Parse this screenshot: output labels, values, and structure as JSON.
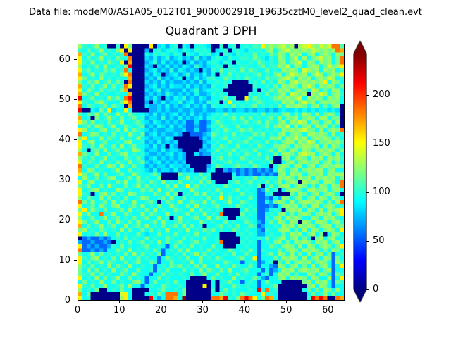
{
  "figure": {
    "data_file_label": "Data file: modeM0/AS1A05_012T01_9000002918_19635cztM0_level2_quad_clean.evt",
    "title": "Quadrant 3 DPH"
  },
  "chart_data": {
    "type": "heatmap",
    "title": "Quadrant 3 DPH",
    "xlabel": "",
    "ylabel": "",
    "x_range": [
      0,
      64
    ],
    "y_range": [
      0,
      64
    ],
    "x_ticks": [
      0,
      10,
      20,
      30,
      40,
      50,
      60
    ],
    "y_ticks": [
      0,
      10,
      20,
      30,
      40,
      50,
      60
    ],
    "grid": false,
    "colormap": "jet",
    "vmin": 0,
    "vmax": 243,
    "colorbar_ticks": [
      0,
      50,
      100,
      150,
      200
    ],
    "colorbar_extend": "both",
    "matrix_note": "64x64 counts estimated from pixel colors; rows listed top (y=63) to bottom (y=0); each row is 8 segments of 8 hex palette indices; palette_values maps hex digit to counts",
    "palette_values": {
      "0": 2,
      "1": 30,
      "2": 55,
      "3": 72,
      "4": 85,
      "5": 95,
      "6": 103,
      "7": 110,
      "8": 118,
      "9": 128,
      "a": 140,
      "b": 155,
      "c": 172,
      "d": 185,
      "e": 215,
      "f": 238
    },
    "matrix_rows_top_to_bottom": [
      [
        "96569560",
        "060b8000",
        "0b045356",
        "05405654",
        "00605605",
        "6576b898",
        "9a8909ab",
        "98a9add7"
      ],
      [
        "65856956",
        "58b0b000",
        "30564565",
        "46546565",
        "04560565",
        "46565895",
        "89a89898",
        "a98989dc"
      ],
      [
        "c6595685",
        "656d0000",
        "54656546",
        "50654656",
        "45065465",
        "65856586",
        "98598958",
        "95898598"
      ],
      [
        "b5856956",
        "5865d000",
        "43534634",
        "53436343",
        "56546556",
        "65865465",
        "9858a595",
        "89a8958d"
      ],
      [
        "b6595658",
        "65b0c000",
        "34635343",
        "40353435",
        "65465065",
        "56586565",
        "89589a59",
        "8598958d"
      ],
      [
        "95658595",
        "5658e000",
        "43043534",
        "35436434",
        "56506556",
        "65568566",
        "98a59858",
        "9958a89b"
      ],
      [
        "b6856586",
        "856d5000",
        "34534363",
        "54343043",
        "65856658",
        "58655856",
        "598985a9",
        "89598957"
      ],
      [
        "c5695865",
        "658bd000",
        "43540345",
        "34634353",
        "50658565",
        "65685658",
        "958a9895",
        "8a95898b"
      ],
      [
        "b8565956",
        "5655c000",
        "34363434",
        "50435346",
        "65586565",
        "86565866",
        "89a85989",
        "5898a956"
      ],
      [
        "95869568",
        "5860d000",
        "43435343",
        "34343635",
        "56565000",
        "05658565",
        "9859a898",
        "989b5985"
      ],
      [
        "c6585695",
        "856db000",
        "34534354",
        "43534343",
        "65560000",
        "00655658",
        "5989859a",
        "85989858"
      ],
      [
        "b5965856",
        "658c0000",
        "43463433",
        "35346345",
        "56500000",
        "00506586",
        "98958985",
        "a9585995"
      ],
      [
        "c8659565",
        "5655c000",
        "34343643",
        "43435334",
        "65650000",
        "06565856",
        "895a9890",
        "98a95896"
      ],
      [
        "e5685659",
        "685de000",
        "43530435",
        "46343543",
        "55685600",
        "b5865568",
        "98989a59",
        "89859895"
      ],
      [
        "b6558965",
        "558bd000",
        "30435344",
        "63453436",
        "5605b565",
        "65686556",
        "598958a8",
        "95898985"
      ],
      [
        "d5865685",
        "8650c000",
        "43343534",
        "34534353",
        "65565856",
        "56856565",
        "85989985",
        "89585890"
      ],
      [
        "e005485b",
        "455b5000",
        "03343433",
        "43343343",
        "34434344",
        "34344343",
        "45445454",
        "54554540"
      ],
      [
        "75869586",
        "59658655",
        "43534345",
        "34353434",
        "56585655",
        "65658566",
        "58958598",
        "59589850"
      ],
      [
        "c5608569",
        "65856856",
        "34436343",
        "53434535",
        "65656858",
        "58565685",
        "95889589",
        "85995880"
      ],
      [
        "b8595658",
        "56955685",
        "43543434",
        "34224223",
        "58655656",
        "85685865",
        "89598a95",
        "98589590"
      ],
      [
        "56859856",
        "95586568",
        "34354353",
        "43223224",
        "65865585",
        "56556858",
        "98a59589",
        "59895850"
      ],
      [
        "b9565895",
        "68595865",
        "43433443",
        "34224223",
        "56586568",
        "68565656",
        "598989a8",
        "8595898d"
      ],
      [
        "d5698565",
        "85659658",
        "34534334",
        "30022234",
        "86565856",
        "55868565",
        "89589859",
        "98985956"
      ],
      [
        "8b565958",
        "65856595",
        "43443540",
        "00000243",
        "65685665",
        "68556588",
        "9598a895",
        "89898585"
      ],
      [
        "b5895685",
        "56589556",
        "34353434",
        "00000034",
        "56558566",
        "85665856",
        "5899598a",
        "95889897"
      ],
      [
        "b6585965",
        "85956855",
        "43534043",
        "00000043",
        "65865585",
        "56586558",
        "89859899",
        "89595985"
      ],
      [
        "95068595",
        "68565985",
        "34435344",
        "30000334",
        "58566856",
        "65855685",
        "98598598",
        "58989858"
      ],
      [
        "c8659558",
        "56895656",
        "43343453",
        "43004233",
        "65658565",
        "86585658",
        "599859a9",
        "95898595"
      ],
      [
        "96585695",
        "65586585",
        "34534343",
        "43000000",
        "56856558",
        "65665850",
        "08958985",
        "98959896"
      ],
      [
        "b5865956",
        "58659568",
        "43453434",
        "34000000",
        "65568565",
        "58556580",
        "05895898",
        "89589585"
      ],
      [
        "d6558569",
        "85965855",
        "34344354",
        "43400003",
        "58655686",
        "65865505",
        "89859958",
        "95898898"
      ],
      [
        "c5985655",
        "69558565",
        "43534435",
        "34340004",
        "50032323",
        "23232325",
        "98589589",
        "89958955"
      ],
      [
        "b8569585",
        "56855965",
        "56850000",
        "85655856",
        "00000523",
        "23223232",
        "89598958",
        "98959899"
      ],
      [
        "59658568",
        "95568595",
        "65580000",
        "56956585",
        "00000655",
        "65856565",
        "98985989",
        "59898958"
      ],
      [
        "b5895656",
        "58695586",
        "58659565",
        "85565958",
        "50005685",
        "68565856",
        "95898098",
        "9859985d"
      ],
      [
        "86955859",
        "65585695",
        "85655859",
        "56b58565",
        "65586556",
        "56580585",
        "89958985",
        "8598598d"
      ],
      [
        "b5689565",
        "59856558",
        "68595685",
        "65596556",
        "58655685",
        "65523856",
        "05899859",
        "98895895"
      ],
      [
        "b6505896",
        "85659856",
        "55865958",
        "05658595",
        "65856558",
        "56522560",
        "00085985",
        "89589850"
      ],
      [
        "95865958",
        "56585569",
        "85568595",
        "58565658",
        "56b58565",
        "58522325",
        "39858958",
        "95985985"
      ],
      [
        "d8595685",
        "95865955",
        "68505865",
        "95586595",
        "85569558",
        "65522538",
        "98595899",
        "8985859d"
      ],
      [
        "b5685965",
        "89556859",
        "56585596",
        "55859565",
        "68556586",
        "56522232",
        "58989585",
        "99589856"
      ],
      [
        "8b596585",
        "56859565",
        "85956558",
        "65595856",
        "56500005",
        "85622356",
        "50898959",
        "8595989b"
      ],
      [
        "b6955d56",
        "95586559",
        "58655956",
        "56856595",
        "65d00008",
        "56522565",
        "89585898",
        "5898958b"
      ],
      [
        "95685695",
        "68565856",
        "85595605",
        "95568559",
        "58650056",
        "65522658",
        "95989855",
        "98598965"
      ],
      [
        "b8569558",
        "59658595",
        "56859556",
        "85655965",
        "65585655",
        "86532585",
        "98598098",
        "59985896"
      ],
      [
        "c5856956",
        "85595685",
        "95658568",
        "59585605",
        "56856585",
        "58623556",
        "59895989",
        "85899588"
      ],
      [
        "89565865",
        "65958558",
        "58565955",
        "65956586",
        "85655865",
        "65532655",
        "89958595",
        "9858985b"
      ],
      [
        "b5658595",
        "58565585",
        "45585658",
        "55658556",
        "55000056",
        "56533565",
        "58598958",
        "95805985"
      ],
      [
        "02322323",
        "56585655",
        "85655865",
        "58565585",
        "56000005",
        "65565856",
        "89589585",
        "08958956"
      ],
      [
        "32232232",
        "05658568",
        "56595856",
        "85568565",
        "56d00006",
        "56525658",
        "95859898",
        "59895895"
      ],
      [
        "b2323223",
        "65856556",
        "85565258",
        "56585655",
        "85500055",
        "65525586",
        "58985959",
        "8589858b"
      ],
      [
        "d2232325",
        "58659565",
        "65852565",
        "85955658",
        "56558656",
        "58526555",
        "85898598",
        "98585985"
      ],
      [
        "85695856",
        "56585958",
        "56582556",
        "58569585",
        "65565855",
        "85525685",
        "98595859",
        "58958256"
      ],
      [
        "b6589565",
        "85956585",
        "65525865",
        "65855956",
        "58655568",
        "55b25558",
        "59898595",
        "89598285"
      ],
      [
        "b5856958",
        "65585695",
        "58625585",
        "56595855",
        "65586552",
        "56523560",
        "85958989",
        "58985297"
      ],
      [
        "96585659",
        "58659556",
        "55256586",
        "85658595",
        "59565865",
        "58525532",
        "98589585",
        "9589525b"
      ],
      [
        "85958565",
        "95685585",
        "56265855",
        "58565958",
        "65859556",
        "85552523",
        "59895898",
        "89589255"
      ],
      [
        "86595856",
        "55865955",
        "52558565",
        "65585695",
        "58556585",
        "65525625",
        "98958559",
        "85985286"
      ],
      [
        "b5659585",
        "69558565",
        "25585655",
        "56500005",
        "85655956",
        "55853255",
        "89598985",
        "9855925b"
      ],
      [
        "58565955",
        "85655895",
        "25855658",
        "55000000",
        "50568552",
        "56525855",
        "50000089",
        "59895286"
      ],
      [
        "b6585695",
        "56859552",
        "56558655",
        "650000b0",
        "50655865",
        "65525568",
        "00000008",
        "95985255"
      ],
      [
        "95658005",
        "65855000",
        "05568556",
        "58000000",
        "60585655",
        "565e5d56",
        "00000058",
        "58598595"
      ],
      [
        "c5800000",
        "00ab5000",
        "56585ddd",
        "58000000",
        "55865658",
        "6555b565",
        "00000005",
        "85695855"
      ],
      [
        "b5600000",
        "009b5000",
        "0e535ddc",
        "5f000000",
        "ddce658d",
        "edb58dc5",
        "00000006",
        "eded00dc"
      ]
    ]
  }
}
